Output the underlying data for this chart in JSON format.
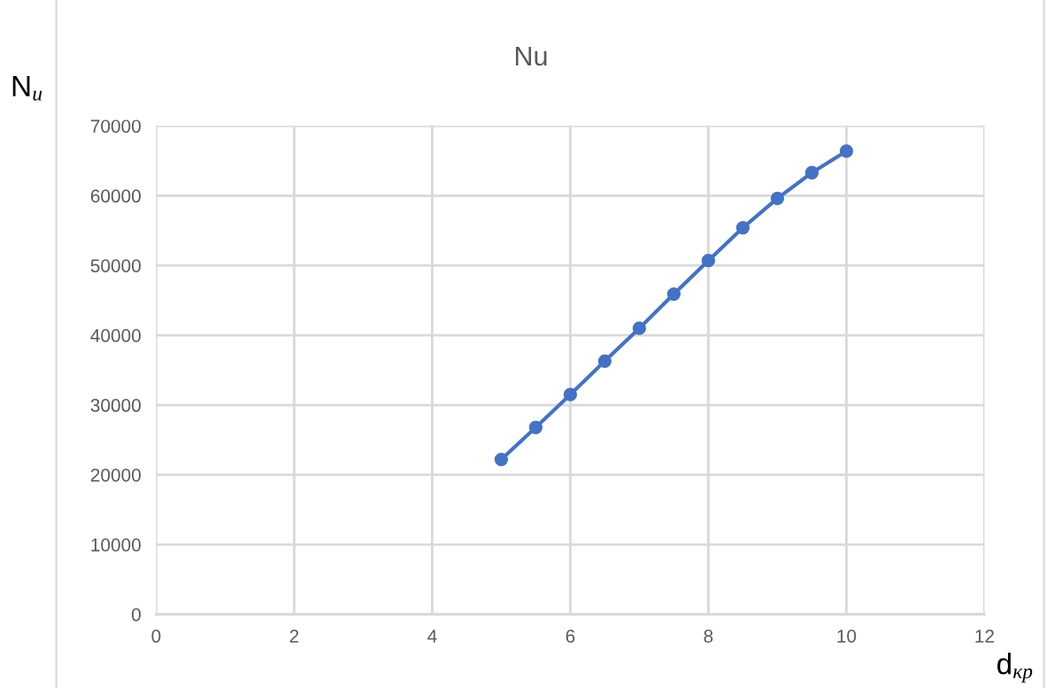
{
  "chart_data": {
    "type": "line",
    "title": "Nu",
    "xlabel": "d$_{кр}$",
    "ylabel": "N$_{u}$",
    "series": [
      {
        "color": "#4472c4",
        "x": [
          5,
          5.5,
          6,
          6.5,
          7,
          7.5,
          8,
          8.5,
          9,
          9.5,
          10
        ],
        "values": [
          22200,
          26800,
          31500,
          36300,
          41000,
          45900,
          50700,
          55400,
          59600,
          63300,
          66400
        ]
      }
    ],
    "xlim": [
      0,
      12
    ],
    "xticks": [
      0,
      2,
      4,
      6,
      8,
      10,
      12
    ],
    "ylim": [
      0,
      70000
    ],
    "yticks": [
      0,
      10000,
      20000,
      30000,
      40000,
      50000,
      60000,
      70000
    ],
    "grid": true,
    "marker": "circle",
    "line_style": "solid"
  }
}
